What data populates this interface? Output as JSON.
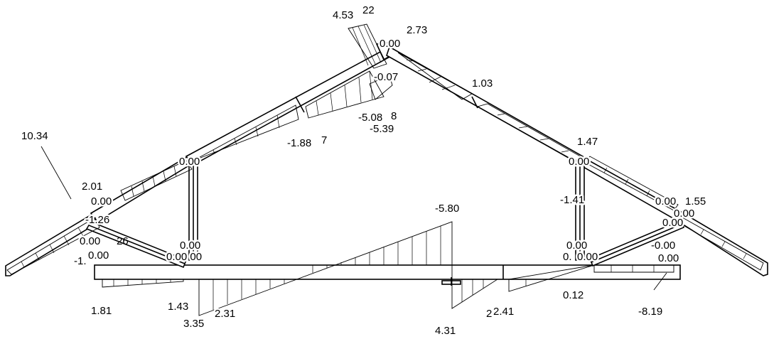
{
  "diagram": {
    "labels": {
      "l1034": "10.34",
      "l201": "2.01",
      "l000_lefttop": "0.00",
      "l126": "-1.26",
      "l000_leftmid": "0.00",
      "l26": "26",
      "l000_leftlow": "0.00",
      "l1x": "-1.",
      "l181": "1.81",
      "l000_post_l_top": "0.00",
      "l000_post_l_bot": "0.00",
      "l000_00": "0.00 00",
      "l143": "1.43",
      "l335": "3.35",
      "l231": "2.31",
      "l188": "-1.88",
      "l7": "7",
      "l508": "-5.08",
      "l8": "8",
      "l539": "-5.39",
      "l007": "-0.07",
      "l453": "4.53",
      "l22": "22",
      "l000_apex": "0.00",
      "l273": "2.73",
      "l103": "1.03",
      "l580": "-5.80",
      "l431": "4.31",
      "l241": "2.41",
      "l2": "2",
      "l000_post_r_top": "0.00",
      "l141": "-1.41",
      "l000_post_r_bot": "0.00",
      "l0x": "0.",
      "l000_rfloor": "0.00",
      "l012": "0.12",
      "l000_r1": "0.00",
      "l155": "1.55",
      "l000_r2": "0.00",
      "l000_r3": "0.00",
      "l000_r4": "-0.00",
      "l000_r5": "0.00",
      "l819": "-8.19",
      "l147": "1.47"
    }
  }
}
